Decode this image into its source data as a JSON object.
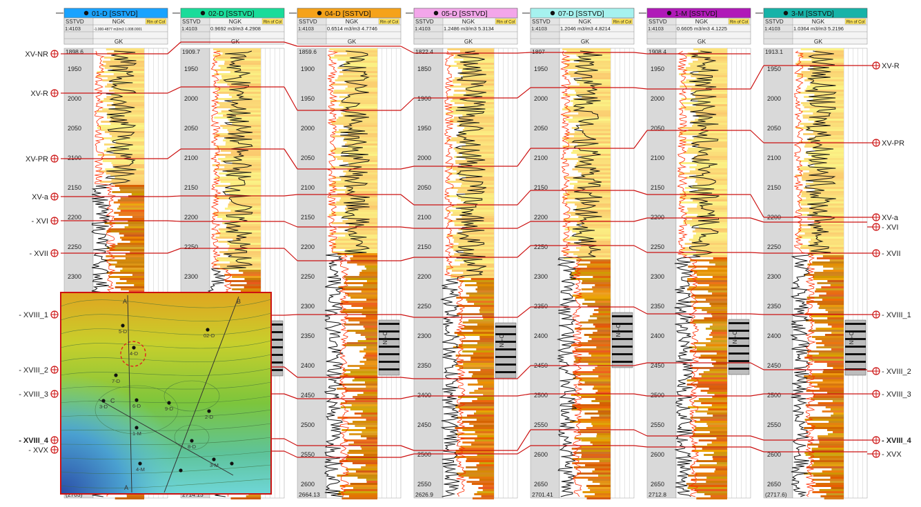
{
  "wells": [
    {
      "name": "01-D [SSTVD]",
      "color": "#1aa3ff",
      "scale": "1:4103",
      "ngk_range": "-1.000-4877 m3/m3 1.008.0001",
      "top": "1898.6",
      "base": "(2703)",
      "depth_ticks": [
        1950,
        2000,
        2050,
        2100,
        2150,
        2200,
        2250,
        2300
      ]
    },
    {
      "name": "02-D [SSTVD]",
      "color": "#1adc9a",
      "scale": "1:4103",
      "ngk_range": "0.9692 m3/m3 4.2908",
      "top": "1909.7",
      "base": "2714.13",
      "depth_ticks": [
        1950,
        2000,
        2050,
        2100,
        2150,
        2200,
        2250,
        2300
      ]
    },
    {
      "name": "04-D [SSTVD]",
      "color": "#f5a21a",
      "scale": "1:4103",
      "ngk_range": "0.6514 m3/m3 4.7746",
      "top": "1859.6",
      "base": "2664.13",
      "depth_ticks": [
        1900,
        1950,
        2000,
        2050,
        2100,
        2150,
        2200,
        2250,
        2300,
        2350,
        2400,
        2450,
        2500,
        2550,
        2600
      ]
    },
    {
      "name": "05-D [SSTVD]",
      "color": "#f3a6ea",
      "scale": "1:4103",
      "ngk_range": "1.2486 m3/m3 5.3134",
      "top": "1822.4",
      "base": "2626.9",
      "depth_ticks": [
        1850,
        1900,
        1950,
        2000,
        2050,
        2100,
        2150,
        2200,
        2250,
        2300,
        2350,
        2400,
        2450,
        2500,
        2550,
        2600
      ]
    },
    {
      "name": "07-D [SSTVD]",
      "color": "#a6f2ef",
      "scale": "1:4103",
      "ngk_range": "1.2046 m3/m3 4.8214",
      "top": "1897",
      "base": "2701.41",
      "depth_ticks": [
        1950,
        2000,
        2050,
        2100,
        2150,
        2200,
        2250,
        2300,
        2350,
        2400,
        2450,
        2500,
        2550,
        2600,
        2650
      ]
    },
    {
      "name": "1-M [SSTVD]",
      "color": "#b01ab8",
      "scale": "1:4103",
      "ngk_range": "0.6605 m3/m3 4.1225",
      "top": "1908.4",
      "base": "2712.8",
      "depth_ticks": [
        1950,
        2000,
        2050,
        2100,
        2150,
        2200,
        2250,
        2300,
        2350,
        2400,
        2450,
        2500,
        2550,
        2600,
        2650
      ]
    },
    {
      "name": "3-M [SSTVD]",
      "color": "#17b3a8",
      "scale": "1:4103",
      "ngk_range": "1.0364 m3/m3 5.2196",
      "top": "1913.1",
      "base": "(2717.6)",
      "depth_ticks": [
        1950,
        2000,
        2050,
        2100,
        2150,
        2200,
        2250,
        2300,
        2350,
        2400,
        2450,
        2500,
        2550,
        2600,
        2650
      ]
    }
  ],
  "track_labels": {
    "depth": "SSTVD",
    "ngk": "NGK",
    "gk": "GK",
    "facies": "Rin of Col"
  },
  "markers_left": [
    "XV-NR",
    "XV-R",
    "XV-PR",
    "XV-a",
    "- XVI",
    "- XVII",
    "- XVIII_1",
    "- XVIII_2",
    "- XVIII_3",
    "- XVIII_4",
    "- XVX"
  ],
  "markers_right": [
    "XV-R",
    "XV-PR",
    "XV-a",
    "- XVI",
    "- XVII",
    "- XVIII_1",
    "- XVIII_2",
    "- XVIII_3",
    "- XVIII_4",
    "- XVX"
  ],
  "lithology_labels": [
    "Nb-Coll",
    "Nb-C"
  ],
  "map": {
    "wells": [
      "5-D",
      "02-D",
      "4-D",
      "7-D",
      "3-D",
      "6-D",
      "9-D",
      "2-D",
      "1-M",
      "8-D",
      "3-M",
      "4-M"
    ],
    "section_labels": [
      "A",
      "B",
      "C",
      "A"
    ]
  },
  "colors": {
    "marker": "#cc1111",
    "sand_light": "#fbe3ad",
    "sand_mid": "#f6b24e",
    "sand_dark": "#c26a12",
    "curve_gk": "#111111",
    "curve_ngk": "#ff2a00"
  }
}
